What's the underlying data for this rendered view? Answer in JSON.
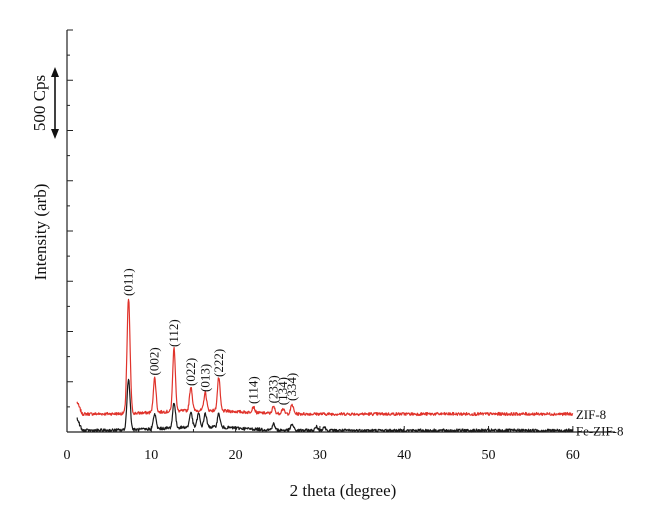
{
  "chart_data": {
    "type": "line",
    "title": "",
    "xlabel": "2 theta (degree)",
    "ylabel": "Intensity (arb)",
    "xlim": [
      0,
      65
    ],
    "x_ticks": [
      0,
      10,
      20,
      30,
      40,
      50,
      60
    ],
    "x_tick_labels": [
      "0",
      "10",
      "20",
      "30",
      "40",
      "50",
      "60"
    ],
    "y_tick_count": 8,
    "grid": false,
    "scale_bar": {
      "label": "500 Cps",
      "value": 500
    },
    "series": [
      {
        "name": "ZIF-8",
        "color": "#e0332b",
        "baseline": 60,
        "x_range": [
          1.2,
          60
        ],
        "peaks": [
          {
            "x": 7.3,
            "height": 380,
            "label": "(011)"
          },
          {
            "x": 10.4,
            "height": 115,
            "label": "(002)"
          },
          {
            "x": 12.7,
            "height": 210,
            "label": "(112)"
          },
          {
            "x": 14.7,
            "height": 80,
            "label": "(022)"
          },
          {
            "x": 16.4,
            "height": 60,
            "label": "(013)"
          },
          {
            "x": 18.0,
            "height": 110,
            "label": "(222)"
          },
          {
            "x": 22.1,
            "height": 20,
            "label": "(114)"
          },
          {
            "x": 24.5,
            "height": 22,
            "label": "(233)"
          },
          {
            "x": 25.6,
            "height": 16,
            "label": "(134)"
          },
          {
            "x": 26.7,
            "height": 30,
            "label": "(334)"
          }
        ]
      },
      {
        "name": "Fe-ZIF-8",
        "color": "#1a1a1a",
        "baseline": 5,
        "x_range": [
          1.2,
          60
        ],
        "peaks": [
          {
            "x": 7.3,
            "height": 170
          },
          {
            "x": 10.4,
            "height": 50
          },
          {
            "x": 12.7,
            "height": 85
          },
          {
            "x": 14.7,
            "height": 50
          },
          {
            "x": 15.6,
            "height": 45
          },
          {
            "x": 16.4,
            "height": 45
          },
          {
            "x": 18.0,
            "height": 45
          },
          {
            "x": 24.5,
            "height": 20
          },
          {
            "x": 26.7,
            "height": 20
          },
          {
            "x": 29.6,
            "height": 12
          },
          {
            "x": 30.5,
            "height": 12
          }
        ]
      }
    ]
  }
}
